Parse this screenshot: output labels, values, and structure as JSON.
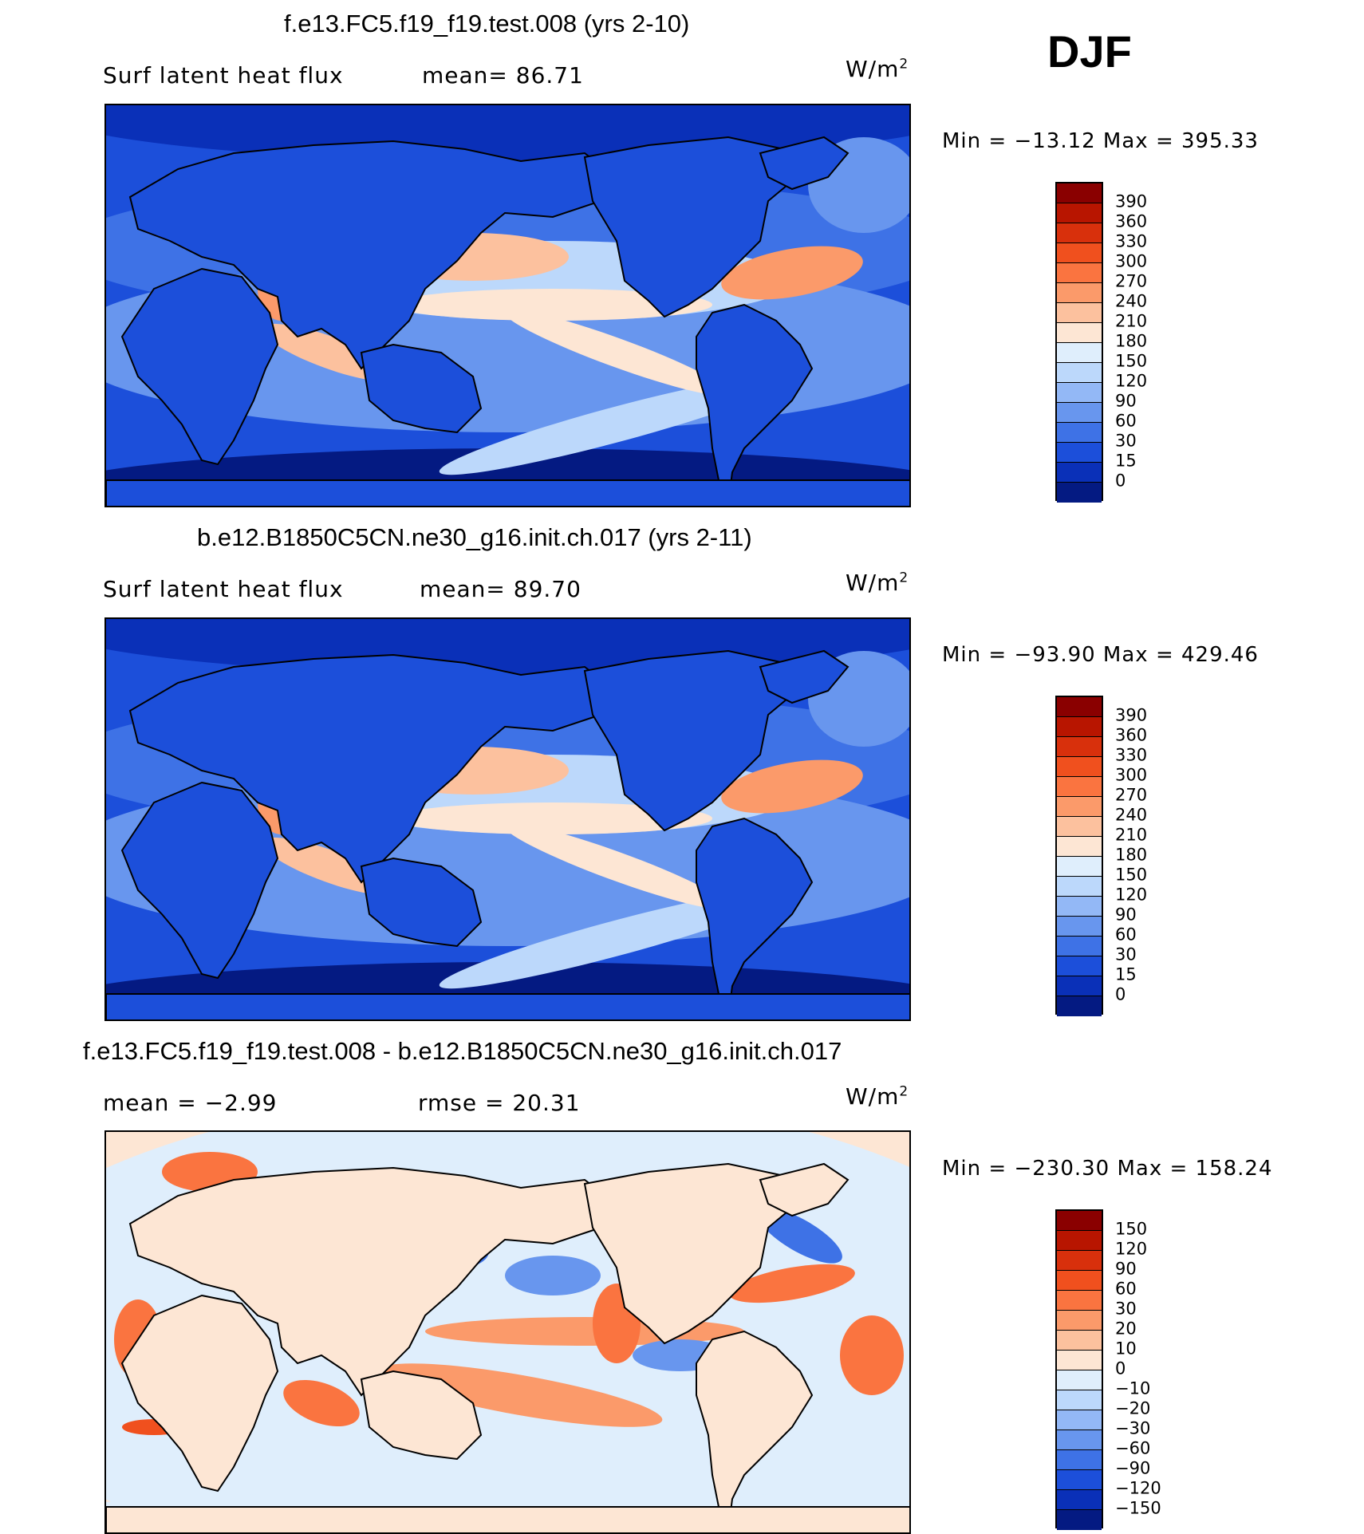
{
  "season": "DJF",
  "panels": [
    {
      "title": "f.e13.FC5.f19_f19.test.008 (yrs 2-10)",
      "variable": "Surf latent heat flux",
      "stat1": "mean=  86.71",
      "stat2": "",
      "units": "W/m",
      "units_sup": "2",
      "minmax": "Min = −13.12 Max = 395.33",
      "colorbar": {
        "levels": [
          "390",
          "360",
          "330",
          "300",
          "270",
          "240",
          "210",
          "180",
          "150",
          "120",
          "90",
          "60",
          "30",
          "15",
          "0"
        ],
        "colors": [
          "#8a0000",
          "#b81500",
          "#d8300c",
          "#f0501e",
          "#fa7440",
          "#fb9a6a",
          "#fcc19e",
          "#fde6d4",
          "#dfeefc",
          "#bcd8fb",
          "#93b8f6",
          "#6896ee",
          "#3e72e6",
          "#1c4fda",
          "#0a30b8",
          "#041a82"
        ]
      }
    },
    {
      "title": "b.e12.B1850C5CN.ne30_g16.init.ch.017 (yrs 2-11)",
      "variable": "Surf latent heat flux",
      "stat1": "mean=  89.70",
      "stat2": "",
      "units": "W/m",
      "units_sup": "2",
      "minmax": "Min = −93.90 Max = 429.46",
      "colorbar": {
        "levels": [
          "390",
          "360",
          "330",
          "300",
          "270",
          "240",
          "210",
          "180",
          "150",
          "120",
          "90",
          "60",
          "30",
          "15",
          "0"
        ],
        "colors": [
          "#8a0000",
          "#b81500",
          "#d8300c",
          "#f0501e",
          "#fa7440",
          "#fb9a6a",
          "#fcc19e",
          "#fde6d4",
          "#dfeefc",
          "#bcd8fb",
          "#93b8f6",
          "#6896ee",
          "#3e72e6",
          "#1c4fda",
          "#0a30b8",
          "#041a82"
        ]
      }
    },
    {
      "title": "f.e13.FC5.f19_f19.test.008 - b.e12.B1850C5CN.ne30_g16.init.ch.017",
      "variable": "mean =   −2.99",
      "stat1": "rmse =   20.31",
      "stat2": "",
      "units": "W/m",
      "units_sup": "2",
      "minmax": "Min = −230.30 Max = 158.24",
      "colorbar": {
        "levels": [
          "150",
          "120",
          "90",
          "60",
          "30",
          "20",
          "10",
          "0",
          "−10",
          "−20",
          "−30",
          "−60",
          "−90",
          "−120",
          "−150"
        ],
        "colors": [
          "#8a0000",
          "#b81500",
          "#d8300c",
          "#f0501e",
          "#fa7440",
          "#fb9a6a",
          "#fcc19e",
          "#fde6d4",
          "#dfeefc",
          "#bcd8fb",
          "#93b8f6",
          "#6896ee",
          "#3e72e6",
          "#1c4fda",
          "#0a30b8",
          "#041a82"
        ]
      }
    }
  ]
}
